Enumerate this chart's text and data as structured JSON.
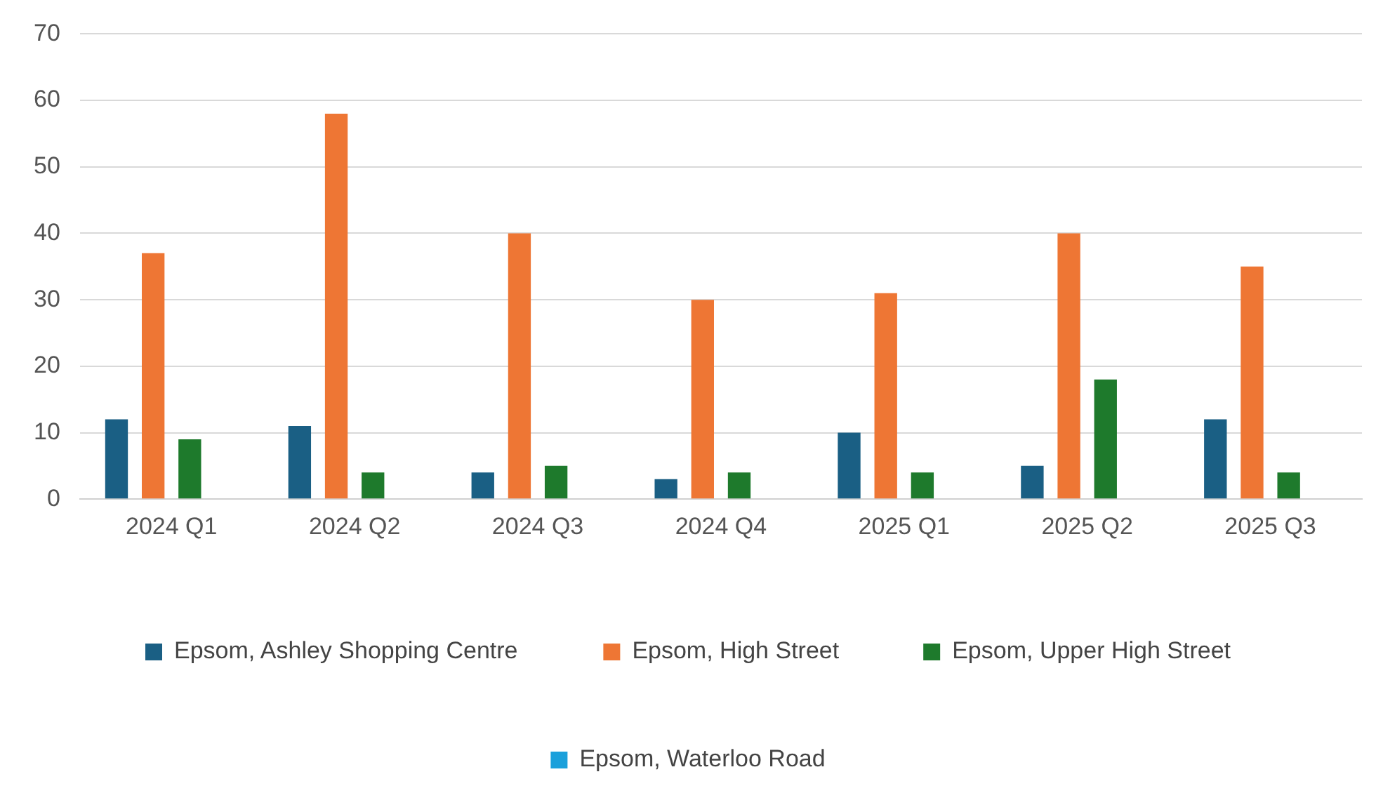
{
  "chart_data": {
    "type": "bar",
    "categories": [
      "2024 Q1",
      "2024 Q2",
      "2024 Q3",
      "2024 Q4",
      "2025 Q1",
      "2025 Q2",
      "2025 Q3"
    ],
    "series": [
      {
        "name": "Epsom, Ashley Shopping Centre",
        "color": "#1a5f84",
        "values": [
          12,
          11,
          4,
          3,
          10,
          5,
          12
        ]
      },
      {
        "name": "Epsom, High Street",
        "color": "#ee7634",
        "values": [
          37,
          58,
          40,
          30,
          31,
          40,
          35
        ]
      },
      {
        "name": "Epsom, Upper High Street",
        "color": "#1e7a2c",
        "values": [
          9,
          4,
          5,
          4,
          4,
          18,
          4
        ]
      },
      {
        "name": "Epsom, Waterloo Road",
        "color": "#1aa0db",
        "values": [
          0,
          0,
          0,
          0,
          0,
          0,
          0
        ]
      }
    ],
    "ylim": [
      0,
      70
    ],
    "yticks": [
      0,
      10,
      20,
      30,
      40,
      50,
      60,
      70
    ],
    "grid": "y",
    "legend": "bottom"
  }
}
